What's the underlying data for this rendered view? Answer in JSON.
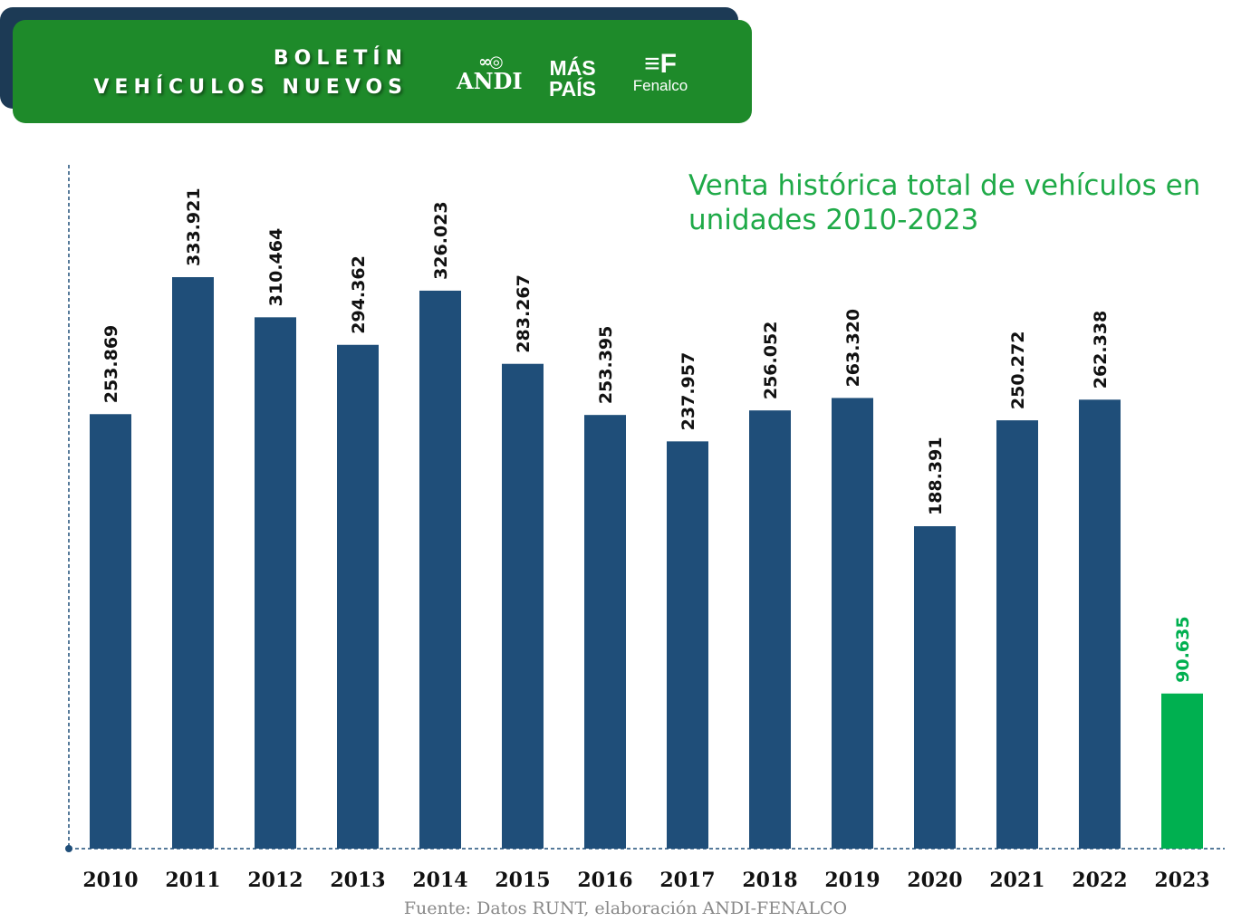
{
  "header": {
    "line1": "BOLETÍN",
    "line2": "VEHÍCULOS NUEVOS",
    "logos": [
      "ANDI",
      "MÁS PAÍS",
      "Fenalco"
    ]
  },
  "chart_data": {
    "type": "bar",
    "title": "Venta histórica total de  vehículos en unidades 2010-2023",
    "categories": [
      "2010",
      "2011",
      "2012",
      "2013",
      "2014",
      "2015",
      "2016",
      "2017",
      "2018",
      "2019",
      "2020",
      "2021",
      "2022",
      "2023"
    ],
    "values": [
      253869,
      333921,
      310464,
      294362,
      326023,
      283267,
      253395,
      237957,
      256052,
      263320,
      188391,
      250272,
      262338,
      90635
    ],
    "value_labels": [
      "253.869",
      "333.921",
      "310.464",
      "294.362",
      "326.023",
      "283.267",
      "253.395",
      "237.957",
      "256.052",
      "263.320",
      "188.391",
      "250.272",
      "262.338",
      "90.635"
    ],
    "xlabel": "",
    "ylabel": "",
    "ylim": [
      0,
      333921
    ],
    "grid": false,
    "colors": {
      "bar": "#1f4e79",
      "highlight": "#00b050",
      "highlight_category": "2023"
    },
    "source": "Fuente: Datos RUNT, elaboración ANDI-FENALCO"
  }
}
